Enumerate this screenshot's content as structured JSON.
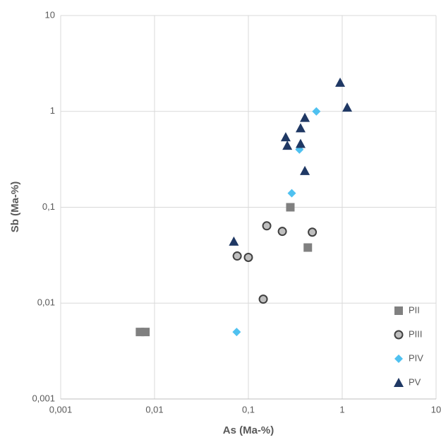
{
  "chart_data": {
    "type": "scatter",
    "x_label": "As (Ma-%)",
    "y_label": "Sb (Ma-%)",
    "log_x": true,
    "log_y": true,
    "grid": true,
    "legend": "lower right",
    "xlim": [
      0.001,
      10
    ],
    "ylim": [
      0.001,
      10
    ],
    "xticks": [
      {
        "value": 0.001,
        "label": "0,001"
      },
      {
        "value": 0.01,
        "label": "0,01"
      },
      {
        "value": 0.1,
        "label": "0,1"
      },
      1,
      10
    ],
    "yticks": [
      {
        "value": 0.001,
        "label": "0,001"
      },
      {
        "value": 0.01,
        "label": "0,01"
      },
      {
        "value": 0.1,
        "label": "0,1"
      },
      1,
      10
    ],
    "series": [
      {
        "name": "PII",
        "color": "#808080",
        "marker": "square",
        "x": [
          0.007,
          0.008,
          0.28,
          0.43
        ],
        "values": [
          0.005,
          0.005,
          0.1,
          0.038
        ]
      },
      {
        "name": "PIII",
        "color": "#bfbfbf",
        "marker": "circle",
        "x": [
          0.076,
          0.1,
          0.157,
          0.23,
          0.48,
          0.144
        ],
        "values": [
          0.031,
          0.03,
          0.064,
          0.056,
          0.055,
          0.011
        ]
      },
      {
        "name": "PIV",
        "color": "#4fc1f0",
        "marker": "diamond",
        "x": [
          0.075,
          0.29,
          0.35,
          0.53
        ],
        "values": [
          0.005,
          0.14,
          0.4,
          1.0
        ]
      },
      {
        "name": "PV",
        "color": "#1f3864",
        "marker": "triangle",
        "x": [
          0.07,
          0.25,
          0.26,
          0.36,
          0.4,
          0.36,
          0.4,
          0.95,
          1.13
        ],
        "values": [
          0.044,
          0.54,
          0.44,
          0.67,
          0.86,
          0.46,
          0.24,
          2.0,
          1.1
        ]
      }
    ]
  }
}
